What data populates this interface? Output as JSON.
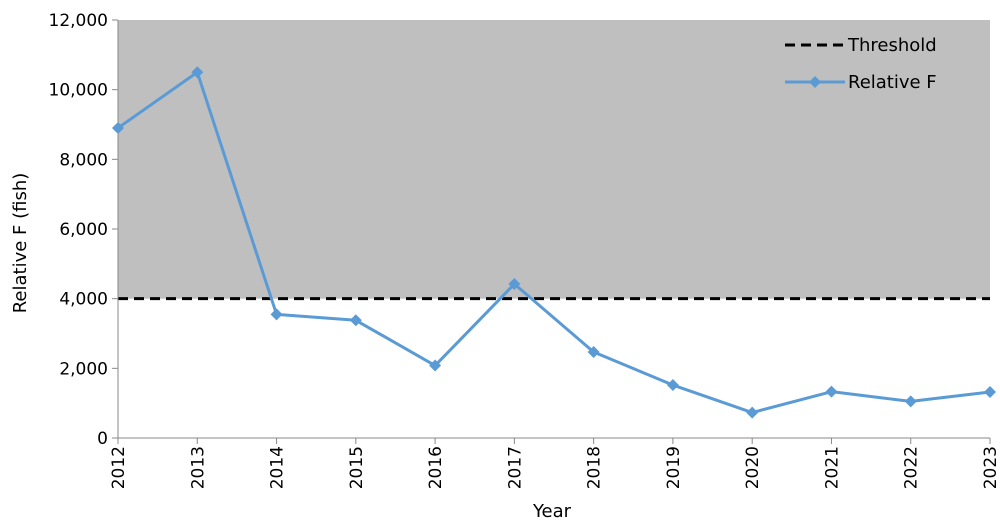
{
  "chart_data": {
    "type": "line",
    "title": "",
    "xlabel": "Year",
    "ylabel": "Relative F (fish)",
    "x": [
      "2012",
      "2013",
      "2014",
      "2015",
      "2016",
      "2017",
      "2018",
      "2019",
      "2020",
      "2021",
      "2022",
      "2023"
    ],
    "ylim": [
      0,
      12000
    ],
    "y_ticks": [
      "0",
      "2,000",
      "4,000",
      "6,000",
      "8,000",
      "10,000",
      "12,000"
    ],
    "y_tick_values": [
      0,
      2000,
      4000,
      6000,
      8000,
      10000,
      12000
    ],
    "series": [
      {
        "name": "Relative F",
        "color": "#5b9bd5",
        "marker": "diamond",
        "values": [
          8900,
          10500,
          3550,
          3380,
          2080,
          4420,
          2470,
          1520,
          730,
          1330,
          1050,
          1320
        ]
      }
    ],
    "threshold": {
      "name": "Threshold",
      "value": 4000,
      "color": "#000000",
      "style": "dashed"
    },
    "shaded_region": {
      "from": 4000,
      "to": 12000,
      "color": "#bfbfbf"
    },
    "legend": {
      "position": "top-right",
      "items": [
        "Threshold",
        "Relative F"
      ]
    },
    "grid": false
  }
}
